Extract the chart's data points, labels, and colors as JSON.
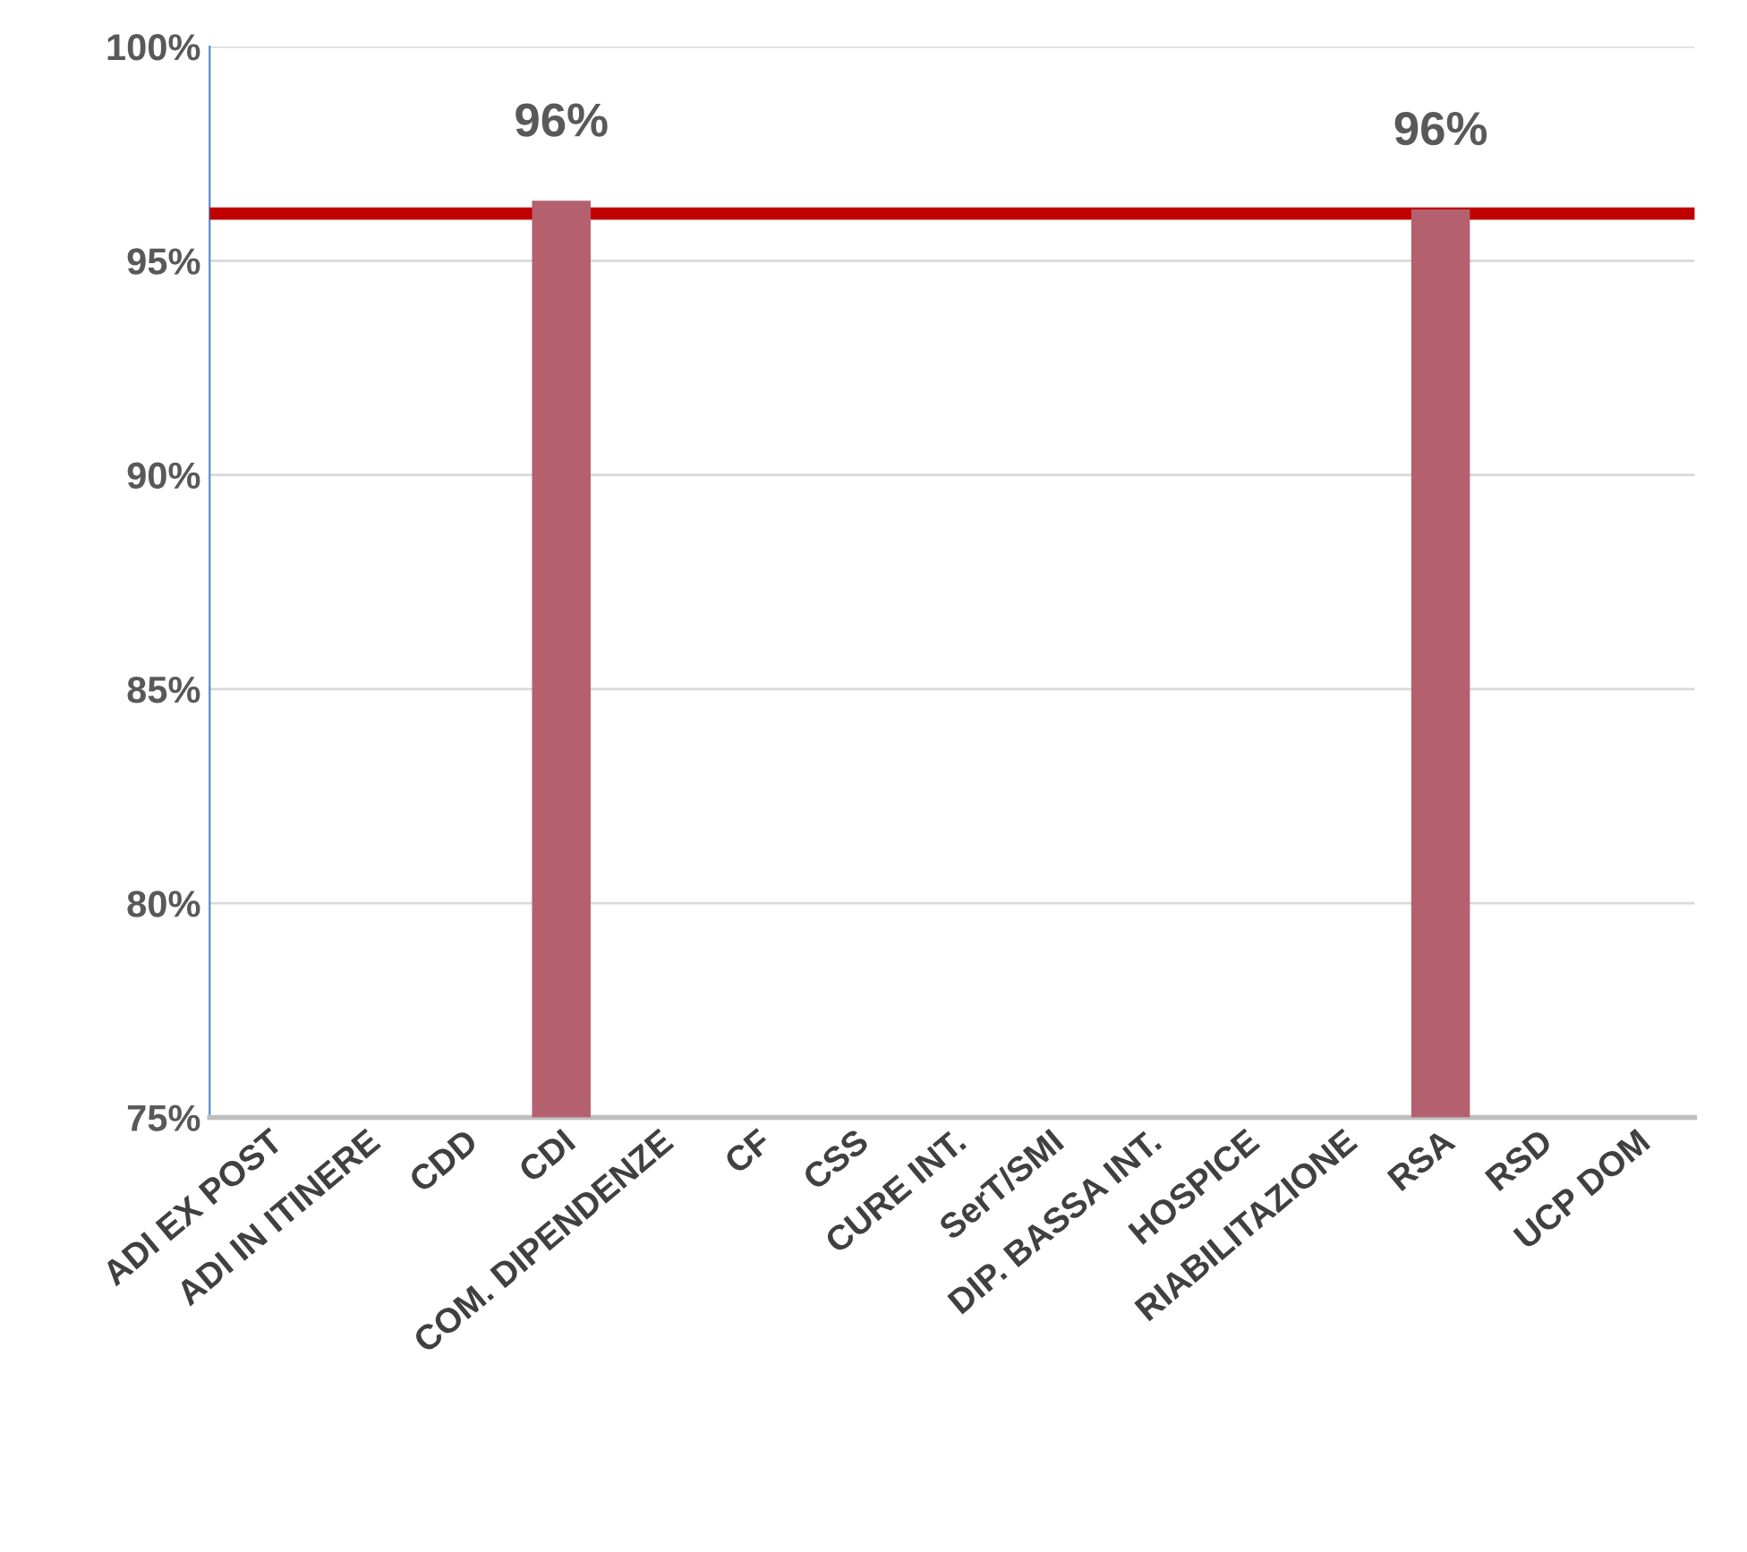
{
  "chart_data": {
    "type": "bar",
    "categories": [
      "ADI EX POST",
      "ADI IN ITINERE",
      "CDD",
      "CDI",
      "COM. DIPENDENZE",
      "CF",
      "CSS",
      "CURE INT.",
      "SerT/SMI",
      "DIP. BASSA INT.",
      "HOSPICE",
      "RIABILITAZIONE",
      "RSA",
      "RSD",
      "UCP DOM"
    ],
    "values": [
      75,
      75,
      75,
      96.4,
      75,
      75,
      75,
      75,
      75,
      75,
      75,
      75,
      96.2,
      75,
      75
    ],
    "value_labels": [
      null,
      null,
      null,
      "96%",
      null,
      null,
      null,
      null,
      null,
      null,
      null,
      null,
      "96%",
      null,
      null
    ],
    "color": "#b5606e",
    "ylim": [
      75,
      100
    ],
    "yticks": [
      {
        "value": 75,
        "label": "75%"
      },
      {
        "value": 80,
        "label": "80%"
      },
      {
        "value": 85,
        "label": "85%"
      },
      {
        "value": 90,
        "label": "90%"
      },
      {
        "value": 95,
        "label": "95%"
      },
      {
        "value": 100,
        "label": "100%"
      }
    ],
    "grid": "y",
    "ref_lines": [
      {
        "axis": "y",
        "value": 96.1,
        "color": "#c00000"
      }
    ]
  }
}
